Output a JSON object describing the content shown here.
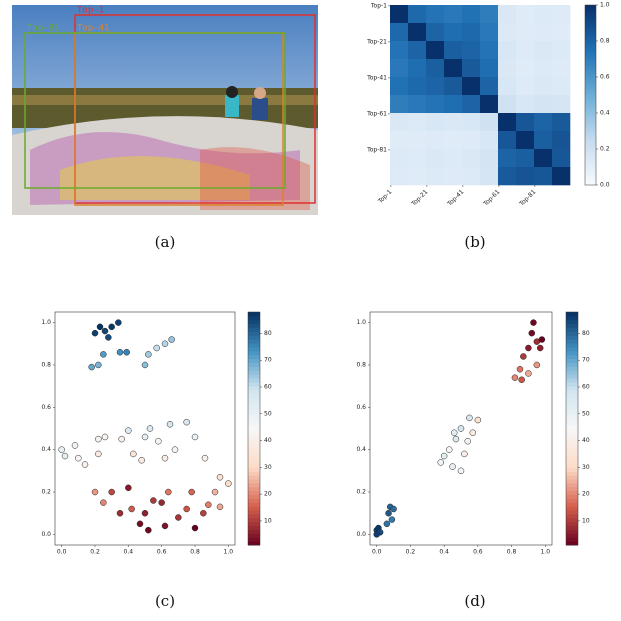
{
  "captions": [
    "(a)",
    "(b)",
    "(c)",
    "(d)"
  ],
  "image_panel": {
    "box_labels": [
      "Top-1",
      "Top-41",
      "Top-81"
    ],
    "box_colors": [
      "#e0302f",
      "#d9822b",
      "#6aaa2c"
    ]
  },
  "chart_data": [
    {
      "type": "heatmap",
      "colormap": "blues",
      "matrix": [
        [
          1.0,
          0.78,
          0.74,
          0.72,
          0.75,
          0.7,
          0.15,
          0.12,
          0.14,
          0.13
        ],
        [
          0.78,
          1.0,
          0.8,
          0.76,
          0.78,
          0.72,
          0.14,
          0.12,
          0.13,
          0.12
        ],
        [
          0.74,
          0.8,
          1.0,
          0.82,
          0.8,
          0.74,
          0.16,
          0.13,
          0.15,
          0.14
        ],
        [
          0.72,
          0.76,
          0.82,
          1.0,
          0.84,
          0.76,
          0.15,
          0.12,
          0.14,
          0.13
        ],
        [
          0.75,
          0.78,
          0.8,
          0.84,
          1.0,
          0.8,
          0.16,
          0.13,
          0.15,
          0.14
        ],
        [
          0.7,
          0.72,
          0.74,
          0.76,
          0.8,
          1.0,
          0.2,
          0.16,
          0.18,
          0.17
        ],
        [
          0.15,
          0.14,
          0.16,
          0.15,
          0.16,
          0.2,
          1.0,
          0.85,
          0.8,
          0.84
        ],
        [
          0.12,
          0.12,
          0.13,
          0.12,
          0.13,
          0.16,
          0.85,
          1.0,
          0.82,
          0.86
        ],
        [
          0.14,
          0.13,
          0.15,
          0.14,
          0.15,
          0.18,
          0.8,
          0.82,
          1.0,
          0.85
        ],
        [
          0.13,
          0.12,
          0.14,
          0.13,
          0.14,
          0.17,
          0.84,
          0.86,
          0.85,
          1.0
        ]
      ],
      "xlim": [
        0.5,
        100.5
      ],
      "ylim": [
        0.5,
        100.5
      ],
      "xticks": [
        {
          "value": 1,
          "label": "Top-1"
        },
        {
          "value": 21,
          "label": "Top-21"
        },
        {
          "value": 41,
          "label": "Top-41"
        },
        {
          "value": 61,
          "label": "Top-61"
        },
        {
          "value": 81,
          "label": "Top-81"
        }
      ],
      "yticks": [
        {
          "value": 1,
          "label": "Top-1"
        },
        {
          "value": 21,
          "label": "Top-21"
        },
        {
          "value": 41,
          "label": "Top-41"
        },
        {
          "value": 61,
          "label": "Top-61"
        },
        {
          "value": 81,
          "label": "Top-81"
        }
      ],
      "clim": [
        0,
        1
      ],
      "cticks": [
        {
          "value": 0,
          "label": "0.0"
        },
        0.2,
        0.4,
        0.6,
        0.8,
        {
          "value": 1,
          "label": "1.0"
        }
      ]
    },
    {
      "type": "scatter",
      "colormap": "rdbu",
      "x": [
        0.2,
        0.23,
        0.26,
        0.28,
        0.3,
        0.34,
        0.18,
        0.22,
        0.25,
        0.35,
        0.39,
        0.5,
        0.52,
        0.57,
        0.62,
        0.66,
        0.0,
        0.02,
        0.08,
        0.1,
        0.14,
        0.22,
        0.26,
        0.22,
        0.36,
        0.4,
        0.43,
        0.48,
        0.5,
        0.53,
        0.58,
        0.62,
        0.65,
        0.68,
        0.75,
        0.8,
        0.86,
        0.95,
        1.0,
        0.2,
        0.25,
        0.3,
        0.35,
        0.4,
        0.42,
        0.47,
        0.5,
        0.52,
        0.55,
        0.6,
        0.62,
        0.64,
        0.7,
        0.75,
        0.78,
        0.8,
        0.85,
        0.88,
        0.92,
        0.95
      ],
      "values": [
        0.95,
        0.98,
        0.96,
        0.93,
        0.98,
        1.0,
        0.79,
        0.8,
        0.85,
        0.86,
        0.86,
        0.8,
        0.85,
        0.88,
        0.9,
        0.92,
        0.4,
        0.37,
        0.42,
        0.36,
        0.33,
        0.45,
        0.46,
        0.38,
        0.45,
        0.49,
        0.38,
        0.35,
        0.46,
        0.5,
        0.44,
        0.36,
        0.52,
        0.4,
        0.53,
        0.46,
        0.36,
        0.27,
        0.24,
        0.2,
        0.15,
        0.2,
        0.1,
        0.22,
        0.12,
        0.05,
        0.1,
        0.02,
        0.16,
        0.15,
        0.04,
        0.2,
        0.08,
        0.12,
        0.2,
        0.03,
        0.1,
        0.14,
        0.2,
        0.13
      ],
      "color_values": [
        86,
        88,
        85,
        84,
        87,
        86,
        70,
        68,
        72,
        74,
        76,
        66,
        64,
        60,
        62,
        65,
        50,
        52,
        48,
        45,
        40,
        42,
        44,
        38,
        40,
        55,
        35,
        37,
        50,
        56,
        46,
        39,
        58,
        43,
        57,
        49,
        41,
        33,
        31,
        22,
        20,
        12,
        8,
        5,
        15,
        3,
        6,
        2,
        10,
        7,
        4,
        18,
        9,
        14,
        16,
        1,
        11,
        19,
        25,
        24
      ],
      "xlim": [
        -0.04,
        1.04
      ],
      "ylim": [
        -0.05,
        1.05
      ],
      "xticks": [
        {
          "value": 0,
          "label": "0.0"
        },
        0.2,
        0.4,
        0.6,
        0.8,
        {
          "value": 1,
          "label": "1.0"
        }
      ],
      "yticks": [
        {
          "value": 0,
          "label": "0.0"
        },
        0.2,
        0.4,
        0.6,
        0.8,
        {
          "value": 1,
          "label": "1.0"
        }
      ],
      "clim": [
        1,
        88
      ],
      "cticks": [
        10,
        20,
        30,
        40,
        50,
        60,
        70,
        80
      ]
    },
    {
      "type": "scatter",
      "colormap": "rdbu",
      "x": [
        0.0,
        0.01,
        0.02,
        0.0,
        0.06,
        0.07,
        0.08,
        0.1,
        0.09,
        0.38,
        0.4,
        0.43,
        0.45,
        0.47,
        0.5,
        0.52,
        0.54,
        0.55,
        0.57,
        0.6,
        0.5,
        0.46,
        0.82,
        0.85,
        0.87,
        0.9,
        0.92,
        0.93,
        0.95,
        0.97,
        0.98,
        0.9,
        0.95,
        0.86
      ],
      "values": [
        0.02,
        0.03,
        0.01,
        0.0,
        0.05,
        0.1,
        0.13,
        0.12,
        0.07,
        0.34,
        0.37,
        0.4,
        0.32,
        0.45,
        0.5,
        0.38,
        0.44,
        0.55,
        0.48,
        0.54,
        0.3,
        0.48,
        0.74,
        0.78,
        0.84,
        0.88,
        0.95,
        1.0,
        0.91,
        0.88,
        0.92,
        0.76,
        0.8,
        0.73
      ],
      "color_values": [
        85,
        87,
        84,
        86,
        78,
        82,
        80,
        79,
        77,
        48,
        52,
        45,
        50,
        55,
        57,
        40,
        42,
        58,
        38,
        33,
        46,
        53,
        20,
        18,
        10,
        5,
        3,
        2,
        8,
        6,
        1,
        24,
        22,
        14
      ],
      "xlim": [
        -0.04,
        1.04
      ],
      "ylim": [
        -0.05,
        1.05
      ],
      "xticks": [
        {
          "value": 0,
          "label": "0.0"
        },
        0.2,
        0.4,
        0.6,
        0.8,
        {
          "value": 1,
          "label": "1.0"
        }
      ],
      "yticks": [
        {
          "value": 0,
          "label": "0.0"
        },
        0.2,
        0.4,
        0.6,
        0.8,
        {
          "value": 1,
          "label": "1.0"
        }
      ],
      "clim": [
        1,
        88
      ],
      "cticks": [
        10,
        20,
        30,
        40,
        50,
        60,
        70,
        80
      ]
    }
  ]
}
